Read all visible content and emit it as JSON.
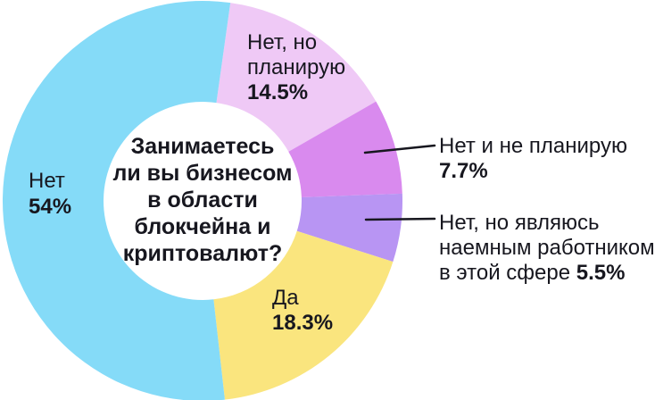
{
  "background_color": "#ffffff",
  "text_color": "#17171f",
  "chart_data": {
    "type": "pie",
    "donut": true,
    "title": "Занимаетесь ли вы бизнесом в области блокчейна и криптовалют?",
    "start_angle_deg": 8,
    "direction": "clockwise",
    "legend_position": "labels-on-and-beside-chart",
    "segments": [
      {
        "key": "no-but-planning",
        "label": "Нет, но планирую",
        "value": 14.5,
        "pct_text": "14.5%",
        "color": "#efc9f6"
      },
      {
        "key": "no-and-not-planning",
        "label": "Нет и не планирую",
        "value": 7.7,
        "pct_text": "7.7%",
        "color": "#d98aee"
      },
      {
        "key": "no-but-employee",
        "label": "Нет, но являюсь наемным работником в этой сфере",
        "value": 5.5,
        "pct_text": "5.5%",
        "color": "#b895f3"
      },
      {
        "key": "yes",
        "label": "Да",
        "value": 18.3,
        "pct_text": "18.3%",
        "color": "#fae57e"
      },
      {
        "key": "no",
        "label": "Нет",
        "value": 54,
        "pct_text": "54%",
        "color": "#85dbf8"
      }
    ]
  },
  "center_question": {
    "line1": "Занимаетесь",
    "line2": "ли вы бизнесом",
    "line3": "в области",
    "line4": "блокчейна и",
    "line5": "криптовалют?"
  },
  "labels": {
    "no": {
      "name": "Нет",
      "pct": "54%"
    },
    "planning": {
      "name_line1": "Нет, но",
      "name_line2": "планирую",
      "pct": "14.5%"
    },
    "yes": {
      "name": "Да",
      "pct": "18.3%"
    },
    "not_planning": {
      "name": "Нет и не планирую",
      "pct": "7.7%"
    },
    "employee": {
      "name_line1": "Нет, но являюсь",
      "name_line2": "наемным работником",
      "name_line3": "в этой сфере",
      "pct": "5.5%"
    }
  }
}
